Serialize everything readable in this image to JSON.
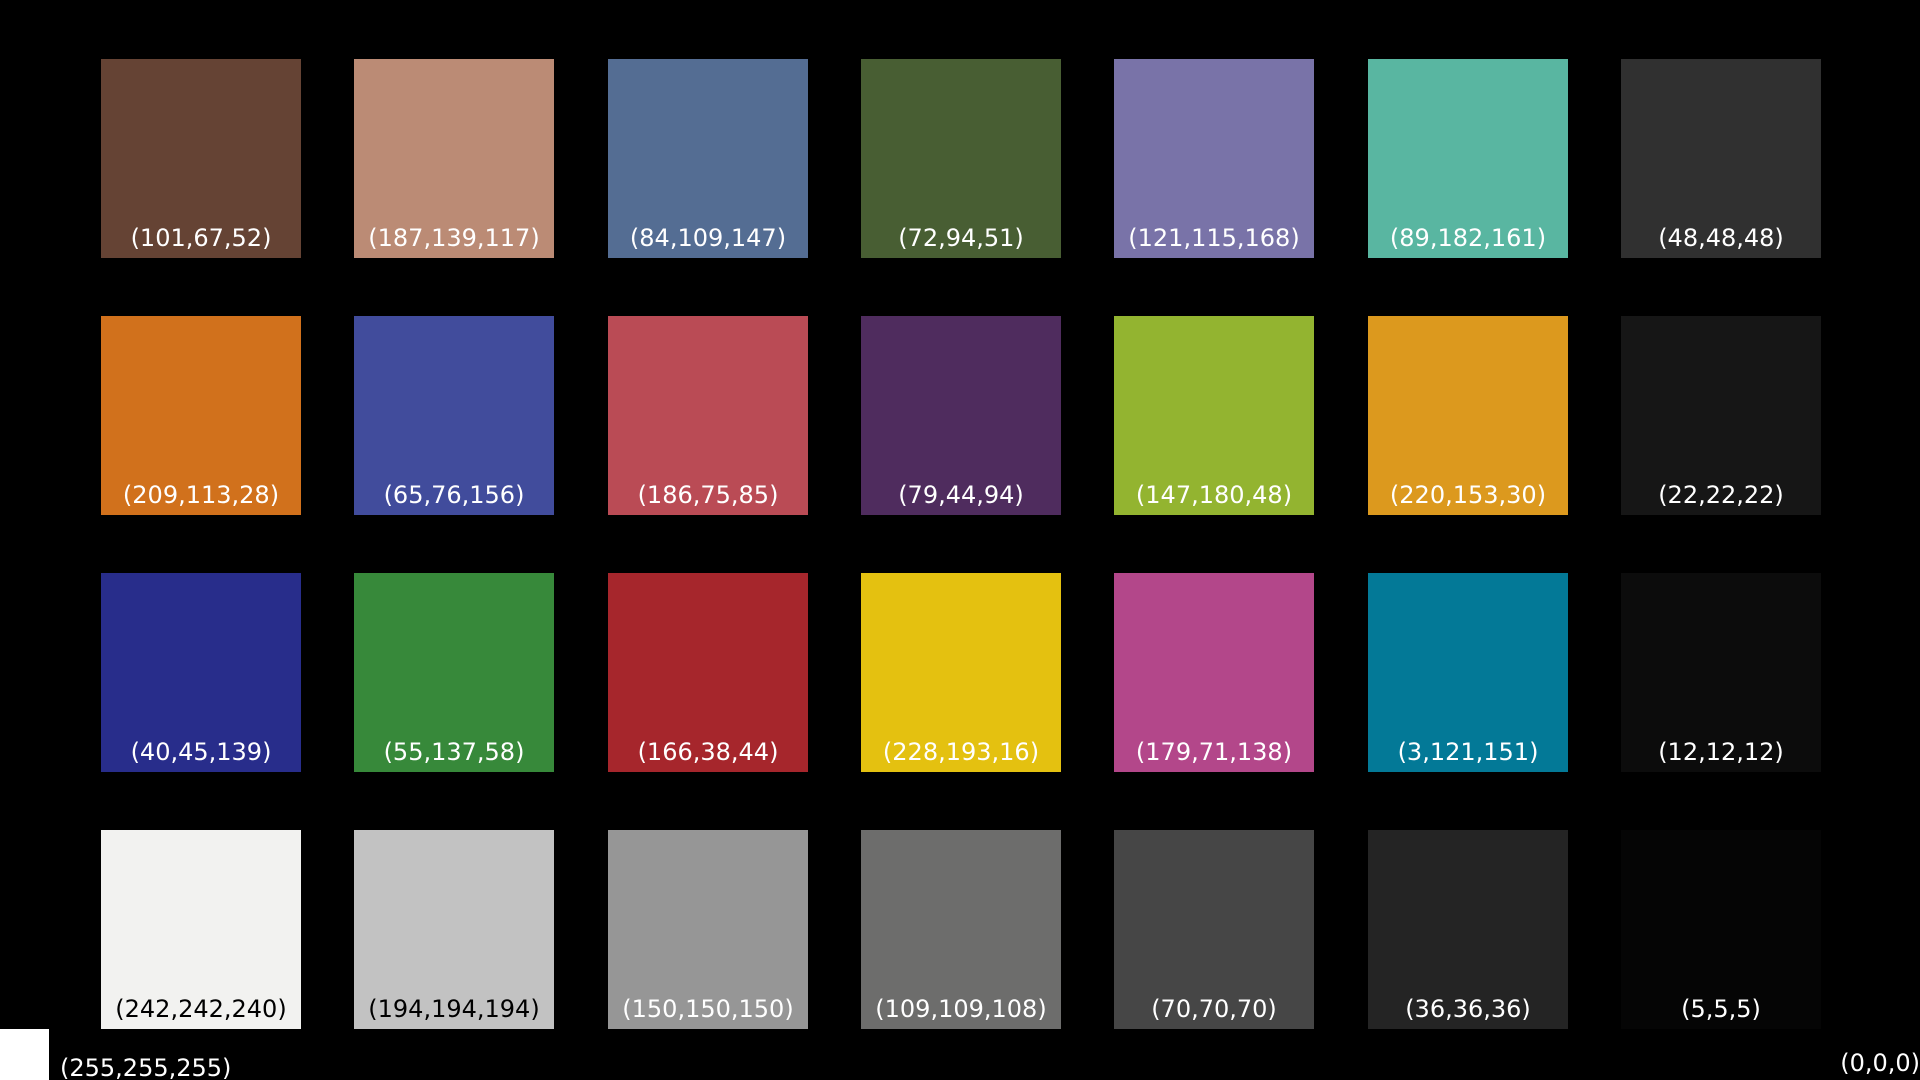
{
  "swatches": [
    {
      "label": "(101,67,52)",
      "color": "#654334",
      "text_color": "#ffffff"
    },
    {
      "label": "(187,139,117)",
      "color": "#bb8b75",
      "text_color": "#ffffff"
    },
    {
      "label": "(84,109,147)",
      "color": "#546d93",
      "text_color": "#ffffff"
    },
    {
      "label": "(72,94,51)",
      "color": "#485e33",
      "text_color": "#ffffff"
    },
    {
      "label": "(121,115,168)",
      "color": "#7973a8",
      "text_color": "#ffffff"
    },
    {
      "label": "(89,182,161)",
      "color": "#59b6a1",
      "text_color": "#ffffff"
    },
    {
      "label": "(48,48,48)",
      "color": "#303030",
      "text_color": "#ffffff"
    },
    {
      "label": "(209,113,28)",
      "color": "#d1711c",
      "text_color": "#ffffff"
    },
    {
      "label": "(65,76,156)",
      "color": "#414c9c",
      "text_color": "#ffffff"
    },
    {
      "label": "(186,75,85)",
      "color": "#ba4b55",
      "text_color": "#ffffff"
    },
    {
      "label": "(79,44,94)",
      "color": "#4f2c5e",
      "text_color": "#ffffff"
    },
    {
      "label": "(147,180,48)",
      "color": "#93b430",
      "text_color": "#ffffff"
    },
    {
      "label": "(220,153,30)",
      "color": "#dc991e",
      "text_color": "#ffffff"
    },
    {
      "label": "(22,22,22)",
      "color": "#161616",
      "text_color": "#ffffff"
    },
    {
      "label": "(40,45,139)",
      "color": "#282d8b",
      "text_color": "#ffffff"
    },
    {
      "label": "(55,137,58)",
      "color": "#37893a",
      "text_color": "#ffffff"
    },
    {
      "label": "(166,38,44)",
      "color": "#a6262c",
      "text_color": "#ffffff"
    },
    {
      "label": "(228,193,16)",
      "color": "#e4c110",
      "text_color": "#ffffff"
    },
    {
      "label": "(179,71,138)",
      "color": "#b3478a",
      "text_color": "#ffffff"
    },
    {
      "label": "(3,121,151)",
      "color": "#037997",
      "text_color": "#ffffff"
    },
    {
      "label": "(12,12,12)",
      "color": "#0c0c0c",
      "text_color": "#ffffff"
    },
    {
      "label": "(242,242,240)",
      "color": "#f2f2f0",
      "text_color": "#000000"
    },
    {
      "label": "(194,194,194)",
      "color": "#c2c2c2",
      "text_color": "#000000"
    },
    {
      "label": "(150,150,150)",
      "color": "#969696",
      "text_color": "#ffffff"
    },
    {
      "label": "(109,109,108)",
      "color": "#6d6d6c",
      "text_color": "#ffffff"
    },
    {
      "label": "(70,70,70)",
      "color": "#464646",
      "text_color": "#ffffff"
    },
    {
      "label": "(36,36,36)",
      "color": "#242424",
      "text_color": "#ffffff"
    },
    {
      "label": "(5,5,5)",
      "color": "#050505",
      "text_color": "#ffffff"
    }
  ],
  "references": {
    "white_label": "(255,255,255)",
    "white_color": "#ffffff",
    "black_label": "(0,0,0)",
    "black_color": "#000000"
  }
}
